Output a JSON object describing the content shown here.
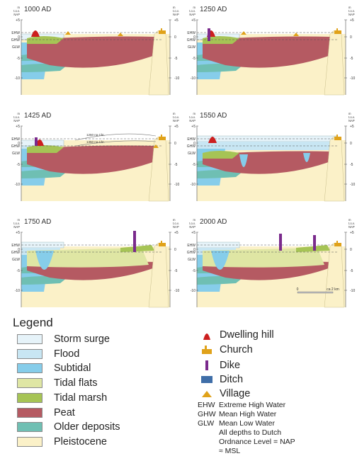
{
  "panels": [
    {
      "title": "1000 AD",
      "left_axis": [
        "+5",
        "0",
        "-5",
        "-10"
      ],
      "water_labels": [
        "EHW",
        "GHW",
        "GLW"
      ]
    },
    {
      "title": "1250 AD",
      "left_axis": [
        "+5",
        "0",
        "-5",
        "-10"
      ],
      "water_labels": [
        "EHW",
        "GHW",
        "GLW"
      ]
    },
    {
      "title": "1425 AD",
      "left_axis": [
        "+5",
        "0",
        "-5",
        "-10"
      ],
      "water_labels": [
        "EHW",
        "GHW",
        "GLW"
      ],
      "annotations": [
        "1250 na Chr.",
        "1350 na Chr."
      ]
    },
    {
      "title": "1550 AD",
      "left_axis": [
        "+5",
        "0",
        "-5",
        "-10"
      ],
      "water_labels": [
        "EHW",
        "GHW",
        "GLW"
      ]
    },
    {
      "title": "1750 AD",
      "left_axis": [
        "+5",
        "0",
        "-5",
        "-10"
      ],
      "water_labels": [
        "EHW",
        "GHW",
        "GLW"
      ]
    },
    {
      "title": "2000 AD",
      "left_axis": [
        "+5",
        "0",
        "-5",
        "-10"
      ],
      "water_labels": [
        "EHW",
        "GHW",
        "GLW"
      ]
    }
  ],
  "axis_unit": [
    "m",
    "t.o.v.",
    "NAP"
  ],
  "right_axis": [
    "+5",
    "0",
    "-5",
    "-10"
  ],
  "scale_bar": {
    "start": "0",
    "end": "ca 2 km"
  },
  "legend": {
    "title": "Legend",
    "layers": [
      {
        "label": "Storm surge",
        "color": "#e6f3f9"
      },
      {
        "label": "Flood",
        "color": "#c8e6f3"
      },
      {
        "label": "Subtidal",
        "color": "#86cdea"
      },
      {
        "label": "Tidal flats",
        "color": "#dfe6a4"
      },
      {
        "label": "Tidal marsh",
        "color": "#a6c455"
      },
      {
        "label": "Peat",
        "color": "#b55a62"
      },
      {
        "label": "Older deposits",
        "color": "#6fbfb3"
      },
      {
        "label": "Pleistocene",
        "color": "#fbf1c8"
      }
    ],
    "symbols": [
      {
        "label": "Dwelling hill",
        "icon": "dwelling-hill-icon",
        "color": "#cc1f1f"
      },
      {
        "label": "Church",
        "icon": "church-icon",
        "color": "#e0a21a"
      },
      {
        "label": "Dike",
        "icon": "dike-icon",
        "color": "#7a2a8c"
      },
      {
        "label": "Ditch",
        "icon": "ditch-icon",
        "color": "#3f6ea8"
      },
      {
        "label": "Village",
        "icon": "village-icon",
        "color": "#e0a21a"
      }
    ],
    "abbreviations": [
      {
        "abbr": "EHW",
        "meaning": "Extreme High Water"
      },
      {
        "abbr": "GHW",
        "meaning": "Mean High Water"
      },
      {
        "abbr": "GLW",
        "meaning": "Mean Low Water"
      }
    ],
    "note_lines": [
      "All depths to Dutch",
      "Ordnance Level = NAP",
      "≈ MSL"
    ]
  }
}
